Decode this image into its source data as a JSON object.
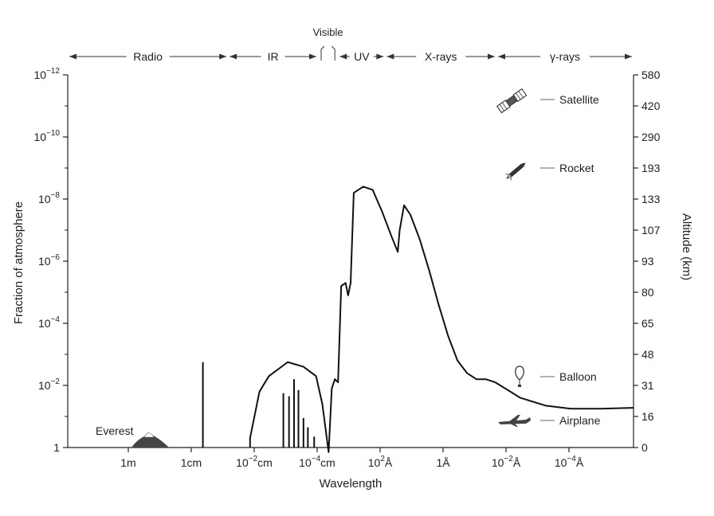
{
  "chart_data": {
    "type": "line",
    "xlabel": "Wavelength",
    "ylabel_left": "Fraction of atmosphere",
    "ylabel_right": "Altitude (km)",
    "x_ticks": [
      {
        "pos": 1,
        "base": "1m",
        "exp": ""
      },
      {
        "pos": 2,
        "base": "1cm",
        "exp": ""
      },
      {
        "pos": 3,
        "base": "10",
        "exp": "−2",
        "unit": "cm"
      },
      {
        "pos": 4,
        "base": "10",
        "exp": "−4",
        "unit": "cm"
      },
      {
        "pos": 5,
        "base": "10",
        "exp": "2",
        "unit": "Å"
      },
      {
        "pos": 6,
        "base": "1Å",
        "exp": ""
      },
      {
        "pos": 7,
        "base": "10",
        "exp": "−2",
        "unit": "Å"
      },
      {
        "pos": 8,
        "base": "10",
        "exp": "−4",
        "unit": "Å"
      }
    ],
    "left_ticks": [
      {
        "value": 0,
        "base": "1",
        "exp": ""
      },
      {
        "value": -2,
        "base": "10",
        "exp": "−2"
      },
      {
        "value": -4,
        "base": "10",
        "exp": "−4"
      },
      {
        "value": -6,
        "base": "10",
        "exp": "−6"
      },
      {
        "value": -8,
        "base": "10",
        "exp": "−8"
      },
      {
        "value": -10,
        "base": "10",
        "exp": "−10"
      },
      {
        "value": -12,
        "base": "10",
        "exp": "−12"
      }
    ],
    "right_ticks": [
      "0",
      "16",
      "31",
      "48",
      "65",
      "80",
      "93",
      "107",
      "133",
      "193",
      "290",
      "420",
      "580"
    ],
    "bands": [
      {
        "label": "Radio",
        "from": 0,
        "to": 2.55
      },
      {
        "label": "IR",
        "from": 2.55,
        "to": 3.98
      },
      {
        "label": "UV",
        "from": 4.3,
        "to": 5.05
      },
      {
        "label": "X-rays",
        "from": 5.05,
        "to": 6.82
      },
      {
        "label": "γ-rays",
        "from": 6.82,
        "to": 9.0
      }
    ],
    "visible_label": "Visible",
    "annotations": [
      {
        "label": "Everest"
      },
      {
        "label": "Satellite",
        "icon": "satellite-icon"
      },
      {
        "label": "Rocket",
        "icon": "rocket-icon"
      },
      {
        "label": "Balloon",
        "icon": "balloon-icon"
      },
      {
        "label": "Airplane",
        "icon": "airplane-icon"
      }
    ],
    "xlim": [
      0,
      9.0
    ],
    "ylim_log": [
      -12,
      0
    ],
    "series": [
      {
        "points": [
          [
            2.9,
            -0.3
          ],
          [
            3.05,
            -1.8
          ],
          [
            3.2,
            -2.3
          ],
          [
            3.5,
            -2.75
          ],
          [
            3.75,
            -2.6
          ],
          [
            3.95,
            -2.3
          ],
          [
            4.05,
            -1.4
          ],
          [
            4.15,
            0.15
          ],
          [
            4.2,
            -1.9
          ],
          [
            4.25,
            -2.2
          ],
          [
            4.3,
            -2.1
          ],
          [
            4.35,
            -5.2
          ],
          [
            4.42,
            -5.3
          ],
          [
            4.46,
            -4.9
          ],
          [
            4.5,
            -5.3
          ],
          [
            4.55,
            -8.2
          ],
          [
            4.7,
            -8.4
          ],
          [
            4.85,
            -8.3
          ],
          [
            5.0,
            -7.6
          ],
          [
            5.15,
            -6.8
          ],
          [
            5.25,
            -6.3
          ],
          [
            5.28,
            -7.0
          ],
          [
            5.35,
            -7.8
          ],
          [
            5.45,
            -7.5
          ],
          [
            5.6,
            -6.7
          ],
          [
            5.75,
            -5.7
          ],
          [
            5.9,
            -4.6
          ],
          [
            6.05,
            -3.6
          ],
          [
            6.2,
            -2.8
          ],
          [
            6.35,
            -2.4
          ],
          [
            6.5,
            -2.2
          ],
          [
            6.65,
            -2.2
          ],
          [
            6.8,
            -2.1
          ],
          [
            7.2,
            -1.6
          ],
          [
            7.6,
            -1.35
          ],
          [
            8.0,
            -1.25
          ],
          [
            8.5,
            -1.25
          ],
          [
            9.0,
            -1.28
          ]
        ]
      }
    ],
    "spikes": [
      {
        "x": 2.15,
        "y": -2.75
      },
      {
        "x": 3.43,
        "y": -1.75
      },
      {
        "x": 3.52,
        "y": -1.65
      },
      {
        "x": 3.6,
        "y": -2.2
      },
      {
        "x": 3.67,
        "y": -1.85
      },
      {
        "x": 3.75,
        "y": -0.95
      },
      {
        "x": 3.82,
        "y": -0.65
      },
      {
        "x": 3.92,
        "y": -0.35
      }
    ]
  }
}
